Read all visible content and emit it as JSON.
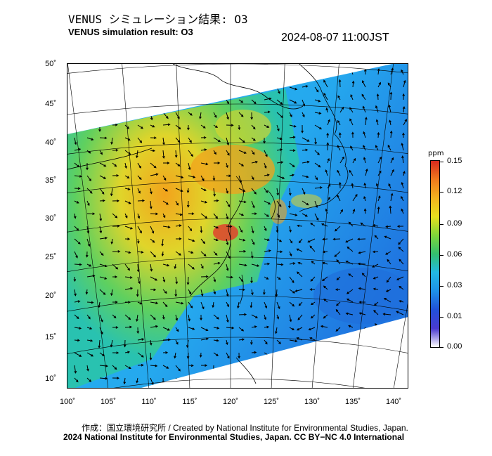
{
  "header": {
    "title_jp": "VENUS シミュレーション結果: O3",
    "title_en": "VENUS simulation result: O3",
    "timestamp": "2024-08-07 11:00JST"
  },
  "map": {
    "lat_ticks": [
      "50˚",
      "45˚",
      "40˚",
      "35˚",
      "30˚",
      "25˚",
      "20˚",
      "15˚",
      "10˚"
    ],
    "lon_ticks": [
      "100˚",
      "105˚",
      "110˚",
      "115˚",
      "120˚",
      "125˚",
      "130˚",
      "135˚",
      "140˚"
    ],
    "colors": {
      "ocean_low": "#1f7fe6",
      "ocean_mid": "#25b8ee",
      "land_mid": "#5fd05f",
      "land_high": "#f2a31c",
      "peak": "#e53a2a"
    }
  },
  "colorbar": {
    "unit": "ppm",
    "ticks": [
      "0.15",
      "0.12",
      "0.09",
      "0.06",
      "0.03",
      "0.01",
      "0.00"
    ],
    "gradient": [
      "#d62a1e",
      "#f07a1d",
      "#f4b31f",
      "#e7e01e",
      "#7fd63a",
      "#33c06e",
      "#22b7e4",
      "#1e90e6",
      "#2150d8",
      "#4a3ad0",
      "#ffffff"
    ]
  },
  "footer": {
    "credit_line1": "作成：国立環境研究所 / Created by National Institute for Environmental Studies, Japan.",
    "credit_line2": "2024 National Institute for Environmental Studies, Japan. CC BY−NC 4.0 International"
  }
}
